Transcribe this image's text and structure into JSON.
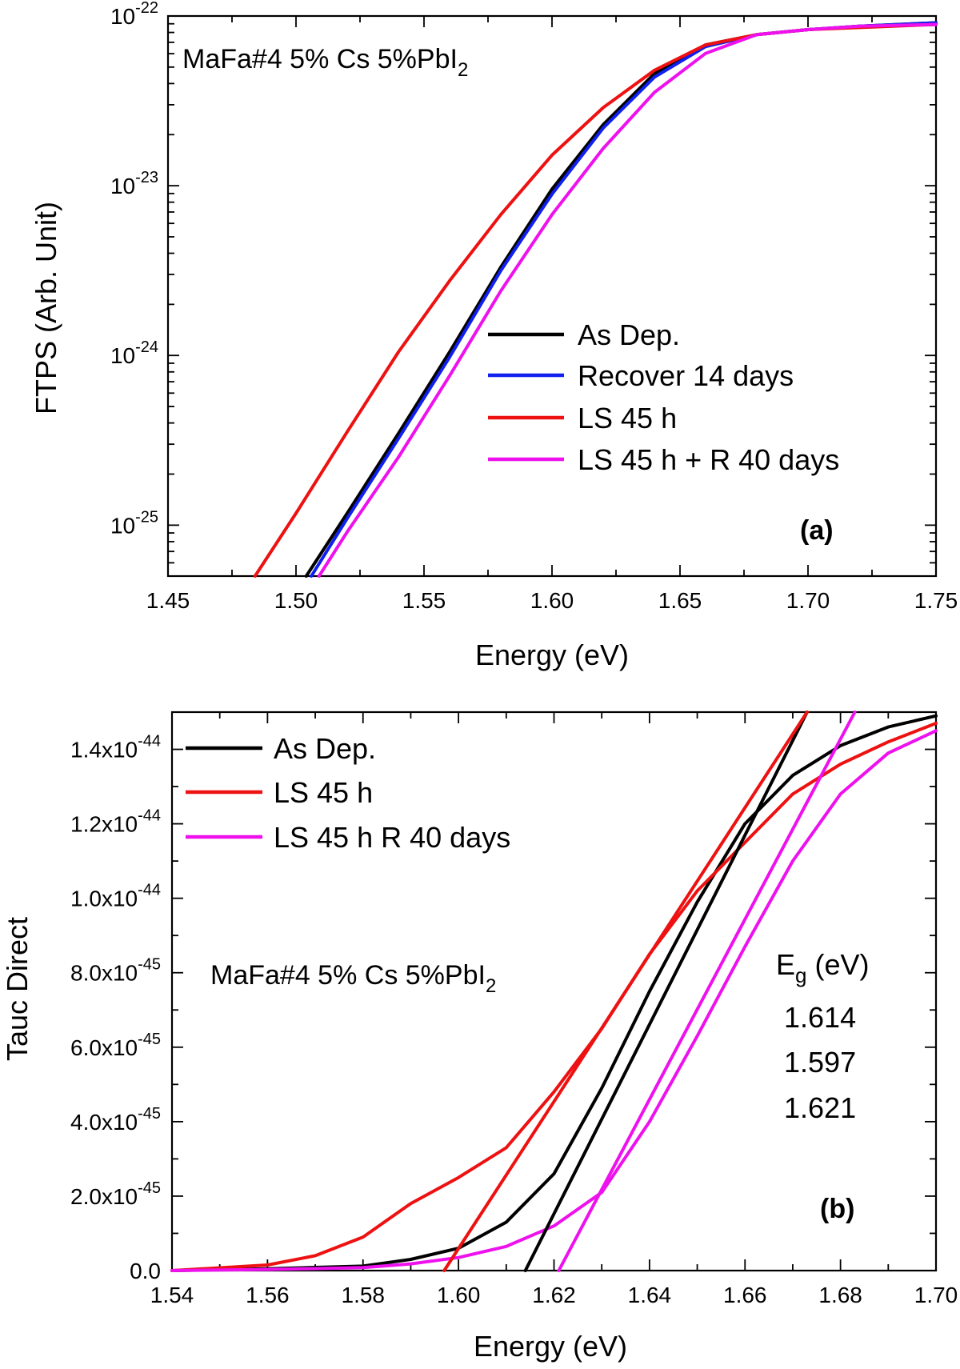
{
  "colors": {
    "black": "#000000",
    "blue": "#1020ee",
    "red": "#ee1111",
    "magenta": "#ee11ee"
  },
  "chart_data": [
    {
      "panel": "a",
      "type": "line",
      "panel_label": "(a)",
      "annotation": {
        "main": "MaFa#4 5% Cs 5%PbI",
        "subscript": "2"
      },
      "xlabel": "Energy (eV)",
      "ylabel": "FTPS (Arb. Unit)",
      "yscale": "log",
      "xlim": [
        1.45,
        1.75
      ],
      "ylim_exp": [
        -25.3,
        -22
      ],
      "x_ticks": [
        "1.45",
        "1.50",
        "1.55",
        "1.60",
        "1.65",
        "1.70",
        "1.75"
      ],
      "y_ticks": [
        {
          "value": -22,
          "base": "10",
          "exp": "-22"
        },
        {
          "value": -23,
          "base": "10",
          "exp": "-23"
        },
        {
          "value": -24,
          "base": "10",
          "exp": "-24"
        },
        {
          "value": -25,
          "base": "10",
          "exp": "-25"
        }
      ],
      "legend": [
        {
          "label": "As Dep.",
          "color": "#000000"
        },
        {
          "label": "Recover 14 days",
          "color": "#1020ee"
        },
        {
          "label": "LS 45 h",
          "color": "#ee1111"
        },
        {
          "label": "LS 45 h + R 40 days",
          "color": "#ee11ee"
        }
      ],
      "series": [
        {
          "name": "As Dep.",
          "color": "#000000",
          "x": [
            1.504,
            1.52,
            1.54,
            1.56,
            1.58,
            1.6,
            1.62,
            1.64,
            1.66,
            1.68,
            1.7,
            1.72,
            1.75
          ],
          "log_y": [
            -25.3,
            -24.93,
            -24.46,
            -23.98,
            -23.48,
            -23.02,
            -22.64,
            -22.34,
            -22.17,
            -22.11,
            -22.08,
            -22.06,
            -22.04
          ]
        },
        {
          "name": "Recover 14 days",
          "color": "#1020ee",
          "x": [
            1.506,
            1.52,
            1.54,
            1.56,
            1.58,
            1.6,
            1.62,
            1.64,
            1.66,
            1.68,
            1.7,
            1.72,
            1.75
          ],
          "log_y": [
            -25.3,
            -24.96,
            -24.49,
            -24.01,
            -23.5,
            -23.05,
            -22.66,
            -22.36,
            -22.18,
            -22.11,
            -22.08,
            -22.06,
            -22.04
          ]
        },
        {
          "name": "LS 45 h",
          "color": "#ee1111",
          "x": [
            1.484,
            1.5,
            1.52,
            1.54,
            1.56,
            1.58,
            1.6,
            1.62,
            1.64,
            1.66,
            1.68,
            1.7,
            1.75
          ],
          "log_y": [
            -25.3,
            -24.93,
            -24.45,
            -23.98,
            -23.56,
            -23.17,
            -22.82,
            -22.54,
            -22.32,
            -22.17,
            -22.11,
            -22.08,
            -22.05
          ]
        },
        {
          "name": "LS 45 h + R 40 days",
          "color": "#ee11ee",
          "x": [
            1.509,
            1.52,
            1.54,
            1.56,
            1.58,
            1.6,
            1.62,
            1.64,
            1.66,
            1.68,
            1.7,
            1.72,
            1.75
          ],
          "log_y": [
            -25.3,
            -25.04,
            -24.6,
            -24.12,
            -23.62,
            -23.17,
            -22.78,
            -22.45,
            -22.22,
            -22.11,
            -22.08,
            -22.06,
            -22.05
          ]
        }
      ]
    },
    {
      "panel": "b",
      "type": "line",
      "panel_label": "(b)",
      "annotation": {
        "main": "MaFa#4 5% Cs 5%PbI",
        "subscript": "2"
      },
      "xlabel": "Energy (eV)",
      "ylabel": "Tauc Direct",
      "xlim": [
        1.54,
        1.7
      ],
      "ylim": [
        0,
        1.5e-44
      ],
      "x_ticks": [
        "1.54",
        "1.56",
        "1.58",
        "1.60",
        "1.62",
        "1.64",
        "1.66",
        "1.68",
        "1.70"
      ],
      "y_ticks": [
        {
          "value": 0,
          "text": "0.0",
          "exp": ""
        },
        {
          "value": 2e-45,
          "text": "2.0x10",
          "exp": "-45"
        },
        {
          "value": 4e-45,
          "text": "4.0x10",
          "exp": "-45"
        },
        {
          "value": 6e-45,
          "text": "6.0x10",
          "exp": "-45"
        },
        {
          "value": 8e-45,
          "text": "8.0x10",
          "exp": "-45"
        },
        {
          "value": 1e-44,
          "text": "1.0x10",
          "exp": "-44"
        },
        {
          "value": 1.2e-44,
          "text": "1.2x10",
          "exp": "-44"
        },
        {
          "value": 1.4e-44,
          "text": "1.4x10",
          "exp": "-44"
        }
      ],
      "legend": [
        {
          "label": "As Dep.",
          "color": "#000000"
        },
        {
          "label": "LS 45 h",
          "color": "#ee1111"
        },
        {
          "label": "LS 45 h R 40 days",
          "color": "#ee11ee"
        }
      ],
      "bandgap": {
        "header_main": "E",
        "header_sub": "g",
        "header_unit": " (eV)",
        "values": [
          {
            "text": "1.614",
            "color": "#000000"
          },
          {
            "text": "1.597",
            "color": "#ee1111"
          },
          {
            "text": "1.621",
            "color": "#ee11ee"
          }
        ]
      },
      "series": [
        {
          "name": "As Dep.",
          "color": "#000000",
          "x": [
            1.54,
            1.56,
            1.58,
            1.59,
            1.6,
            1.61,
            1.62,
            1.63,
            1.64,
            1.65,
            1.66,
            1.67,
            1.68,
            1.69,
            1.7
          ],
          "y": [
            0,
            5e-47,
            1.2e-46,
            3e-46,
            6e-46,
            1.3e-45,
            2.6e-45,
            4.9e-45,
            7.5e-45,
            9.9e-45,
            1.2e-44,
            1.33e-44,
            1.41e-44,
            1.46e-44,
            1.49e-44
          ]
        },
        {
          "name": "LS 45 h",
          "color": "#ee1111",
          "x": [
            1.54,
            1.56,
            1.57,
            1.58,
            1.59,
            1.6,
            1.61,
            1.62,
            1.63,
            1.64,
            1.65,
            1.66,
            1.67,
            1.68,
            1.69,
            1.7
          ],
          "y": [
            0,
            1.5e-46,
            4e-46,
            9e-46,
            1.8e-45,
            2.5e-45,
            3.3e-45,
            4.8e-45,
            6.5e-45,
            8.5e-45,
            1.02e-44,
            1.15e-44,
            1.28e-44,
            1.36e-44,
            1.42e-44,
            1.47e-44
          ]
        },
        {
          "name": "LS 45 h R 40 days",
          "color": "#ee11ee",
          "x": [
            1.54,
            1.56,
            1.58,
            1.59,
            1.6,
            1.61,
            1.62,
            1.63,
            1.64,
            1.65,
            1.66,
            1.67,
            1.68,
            1.69,
            1.7
          ],
          "y": [
            0,
            3e-47,
            8e-47,
            1.8e-46,
            3.5e-46,
            6.5e-46,
            1.2e-45,
            2.1e-45,
            4e-45,
            6.3e-45,
            8.7e-45,
            1.1e-44,
            1.28e-44,
            1.39e-44,
            1.45e-44
          ]
        }
      ],
      "fits": [
        {
          "name": "As Dep. fit",
          "color": "#000000",
          "x": [
            1.614,
            1.673
          ],
          "y": [
            0,
            1.5e-44
          ]
        },
        {
          "name": "LS 45 h fit",
          "color": "#ee1111",
          "x": [
            1.597,
            1.673
          ],
          "y": [
            0,
            1.5e-44
          ]
        },
        {
          "name": "LS 45 h R 40 days fit",
          "color": "#ee11ee",
          "x": [
            1.621,
            1.683
          ],
          "y": [
            0,
            1.5e-44
          ]
        }
      ]
    }
  ]
}
